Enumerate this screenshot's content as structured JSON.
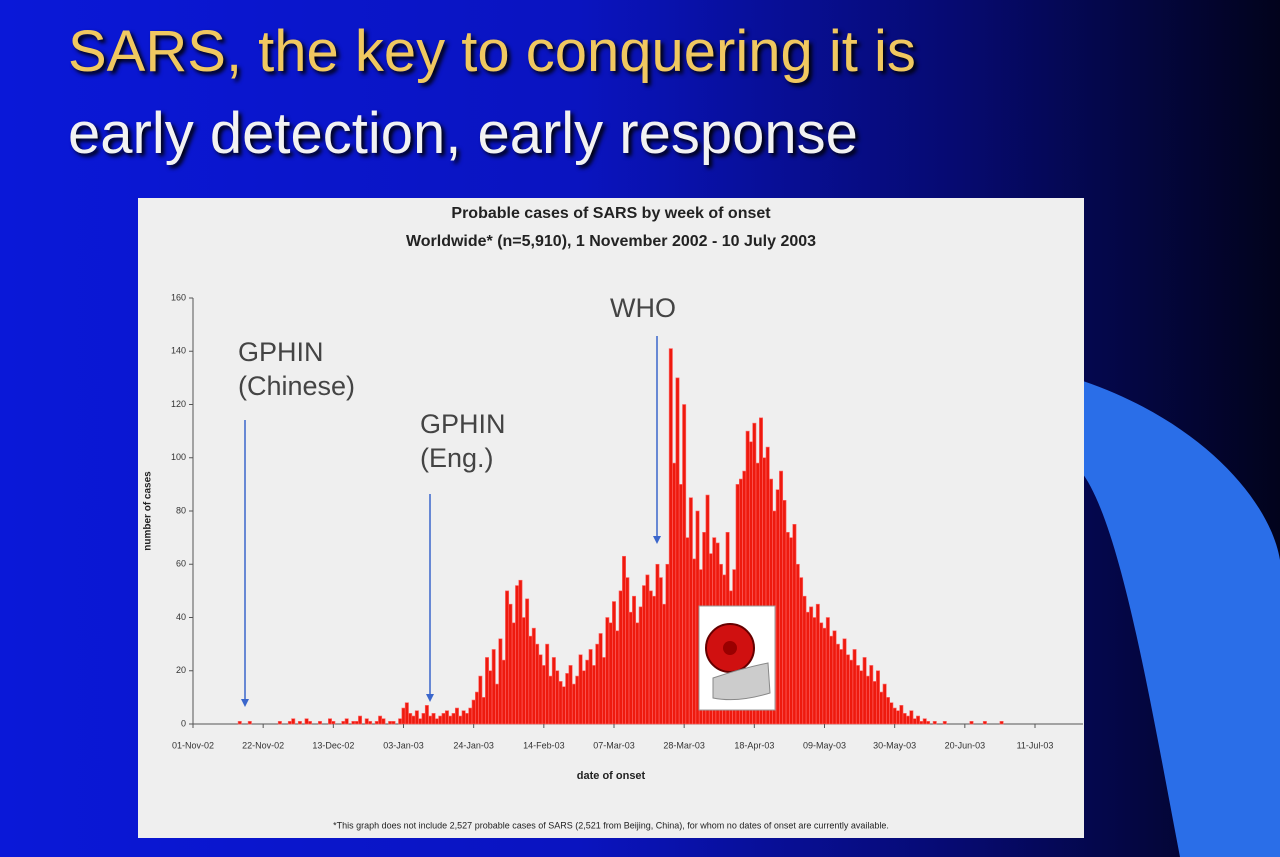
{
  "slide_title": [
    "SARS, the key to conquering it is",
    "early detection, early response"
  ],
  "chart_data": {
    "type": "bar",
    "title": "Probable cases of SARS by week of onset",
    "subtitle": "Worldwide* (n=5,910), 1 November 2002 - 10 July 2003",
    "x_label": "date of onset",
    "y_label": "number of cases",
    "footnote": "*This graph does not include 2,527 probable cases of SARS (2,521 from Beijing, China), for whom no dates of onset are currently available.",
    "annotations": [
      "GPHIN (Chinese)",
      "GPHIN (Eng.)",
      "WHO"
    ],
    "color": "#ee1a0e",
    "ylim": [
      0,
      160
    ],
    "yticks": [
      0,
      20,
      40,
      60,
      80,
      100,
      120,
      140,
      160
    ],
    "categories": [
      "01-Nov-02",
      null,
      null,
      null,
      null,
      null,
      null,
      null,
      null,
      null,
      null,
      null,
      null,
      null,
      null,
      null,
      null,
      null,
      null,
      null,
      null,
      "22-Nov-02",
      null,
      null,
      null,
      null,
      null,
      null,
      null,
      null,
      null,
      null,
      null,
      null,
      null,
      null,
      null,
      null,
      null,
      null,
      null,
      null,
      "13-Dec-02",
      null,
      null,
      null,
      null,
      null,
      null,
      null,
      null,
      null,
      null,
      null,
      null,
      null,
      null,
      null,
      null,
      null,
      null,
      null,
      null,
      "03-Jan-03",
      null,
      null,
      null,
      null,
      null,
      null,
      null,
      null,
      null,
      null,
      null,
      null,
      null,
      null,
      null,
      null,
      null,
      null,
      null,
      null,
      "24-Jan-03",
      null,
      null,
      null,
      null,
      null,
      null,
      null,
      null,
      null,
      null,
      null,
      null,
      null,
      null,
      null,
      null,
      null,
      null,
      null,
      null,
      "14-Feb-03",
      null,
      null,
      null,
      null,
      null,
      null,
      null,
      null,
      null,
      null,
      null,
      null,
      null,
      null,
      null,
      null,
      null,
      null,
      null,
      null,
      "07-Mar-03",
      null,
      null,
      null,
      null,
      null,
      null,
      null,
      null,
      null,
      null,
      null,
      null,
      null,
      null,
      null,
      null,
      null,
      null,
      null,
      null,
      "28-Mar-03",
      null,
      null,
      null,
      null,
      null,
      null,
      null,
      null,
      null,
      null,
      null,
      null,
      null,
      null,
      null,
      null,
      null,
      null,
      null,
      null,
      "18-Apr-03",
      null,
      null,
      null,
      null,
      null,
      null,
      null,
      null,
      null,
      null,
      null,
      null,
      null,
      null,
      null,
      null,
      null,
      null,
      null,
      null,
      "09-May-03",
      null,
      null,
      null,
      null,
      null,
      null,
      null,
      null,
      null,
      null,
      null,
      null,
      null,
      null,
      null,
      null,
      null,
      null,
      null,
      null,
      "30-May-03",
      null,
      null,
      null,
      null,
      null,
      null,
      null,
      null,
      null,
      null,
      null,
      null,
      null,
      null,
      null,
      null,
      null,
      null,
      null,
      null,
      "20-Jun-03",
      null,
      null,
      null,
      null,
      null,
      null,
      null,
      null,
      null,
      null,
      null,
      null,
      null,
      null,
      null,
      null,
      null,
      null,
      null,
      null,
      "11-Jul-03"
    ],
    "values": [
      0,
      0,
      0,
      0,
      0,
      0,
      0,
      0,
      0,
      0,
      0,
      0,
      0,
      0,
      1,
      0,
      0,
      1,
      0,
      0,
      0,
      0,
      0,
      0,
      0,
      0,
      1,
      0,
      0,
      1,
      2,
      0,
      1,
      0,
      2,
      1,
      0,
      0,
      1,
      0,
      0,
      2,
      1,
      0,
      0,
      1,
      2,
      0,
      1,
      1,
      3,
      0,
      2,
      1,
      0,
      1,
      3,
      2,
      0,
      1,
      1,
      0,
      2,
      6,
      8,
      4,
      3,
      5,
      2,
      4,
      7,
      3,
      4,
      2,
      3,
      4,
      5,
      3,
      4,
      6,
      3,
      5,
      4,
      6,
      9,
      12,
      18,
      10,
      25,
      20,
      28,
      15,
      32,
      24,
      50,
      45,
      38,
      52,
      54,
      40,
      47,
      33,
      36,
      30,
      26,
      22,
      30,
      18,
      25,
      20,
      16,
      14,
      19,
      22,
      15,
      18,
      26,
      20,
      24,
      28,
      22,
      30,
      34,
      25,
      40,
      38,
      46,
      35,
      50,
      63,
      55,
      42,
      48,
      38,
      44,
      52,
      56,
      50,
      48,
      60,
      55,
      45,
      60,
      141,
      98,
      130,
      90,
      120,
      70,
      85,
      62,
      80,
      58,
      72,
      86,
      64,
      70,
      68,
      60,
      56,
      72,
      50,
      58,
      90,
      92,
      95,
      110,
      106,
      113,
      98,
      115,
      100,
      104,
      92,
      80,
      88,
      95,
      84,
      72,
      70,
      75,
      60,
      55,
      48,
      42,
      44,
      40,
      45,
      38,
      36,
      40,
      33,
      35,
      30,
      28,
      32,
      26,
      24,
      28,
      22,
      20,
      25,
      18,
      22,
      16,
      20,
      12,
      15,
      10,
      8,
      6,
      5,
      7,
      4,
      3,
      5,
      2,
      3,
      1,
      2,
      1,
      0,
      1,
      0,
      0,
      1,
      0,
      0,
      0,
      0,
      0,
      0,
      0,
      1,
      0,
      0,
      0,
      1,
      0,
      0,
      0,
      0,
      1,
      0,
      0,
      0,
      0,
      0,
      0,
      0,
      0,
      0,
      0
    ]
  }
}
